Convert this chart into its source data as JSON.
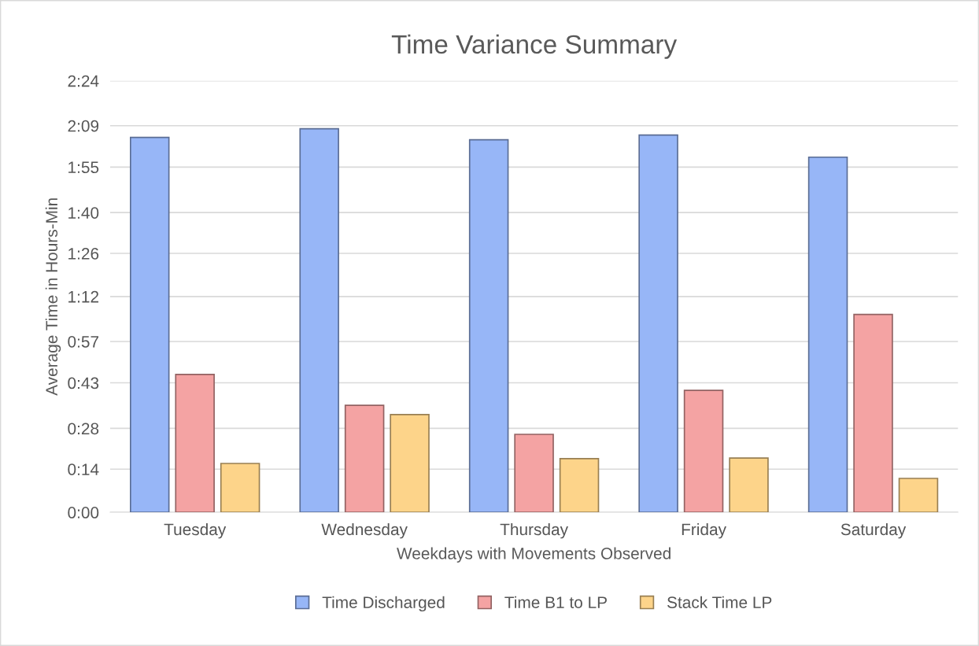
{
  "chart_data": {
    "type": "bar",
    "title": "Time Variance Summary",
    "xlabel": "Weekdays with Movements Observed",
    "ylabel": "Average Time in Hours-Min",
    "categories": [
      "Tuesday",
      "Wednesday",
      "Thursday",
      "Friday",
      "Saturday"
    ],
    "series": [
      {
        "name": "Time Discharged",
        "color": "#97b6f7",
        "values": [
          125.1,
          128.0,
          124.3,
          125.9,
          118.5
        ]
      },
      {
        "name": "Time B1 to LP",
        "color": "#f4a3a3",
        "values": [
          46.0,
          35.7,
          26.0,
          40.7,
          66.0
        ]
      },
      {
        "name": "Stack Time LP",
        "color": "#fdd48a",
        "values": [
          16.3,
          32.6,
          17.9,
          18.1,
          11.3
        ]
      }
    ],
    "ylim": [
      0,
      144
    ],
    "yticks": [
      {
        "value": 0,
        "label": "0:00"
      },
      {
        "value": 14.4,
        "label": "0:14"
      },
      {
        "value": 28,
        "label": "0:28"
      },
      {
        "value": 43.2,
        "label": "0:43"
      },
      {
        "value": 57,
        "label": "0:57"
      },
      {
        "value": 72,
        "label": "1:12"
      },
      {
        "value": 86.4,
        "label": "1:26"
      },
      {
        "value": 100,
        "label": "1:40"
      },
      {
        "value": 115.2,
        "label": "1:55"
      },
      {
        "value": 129,
        "label": "2:09"
      },
      {
        "value": 144,
        "label": "2:24"
      }
    ],
    "grid": "y",
    "legend": "bottom"
  }
}
